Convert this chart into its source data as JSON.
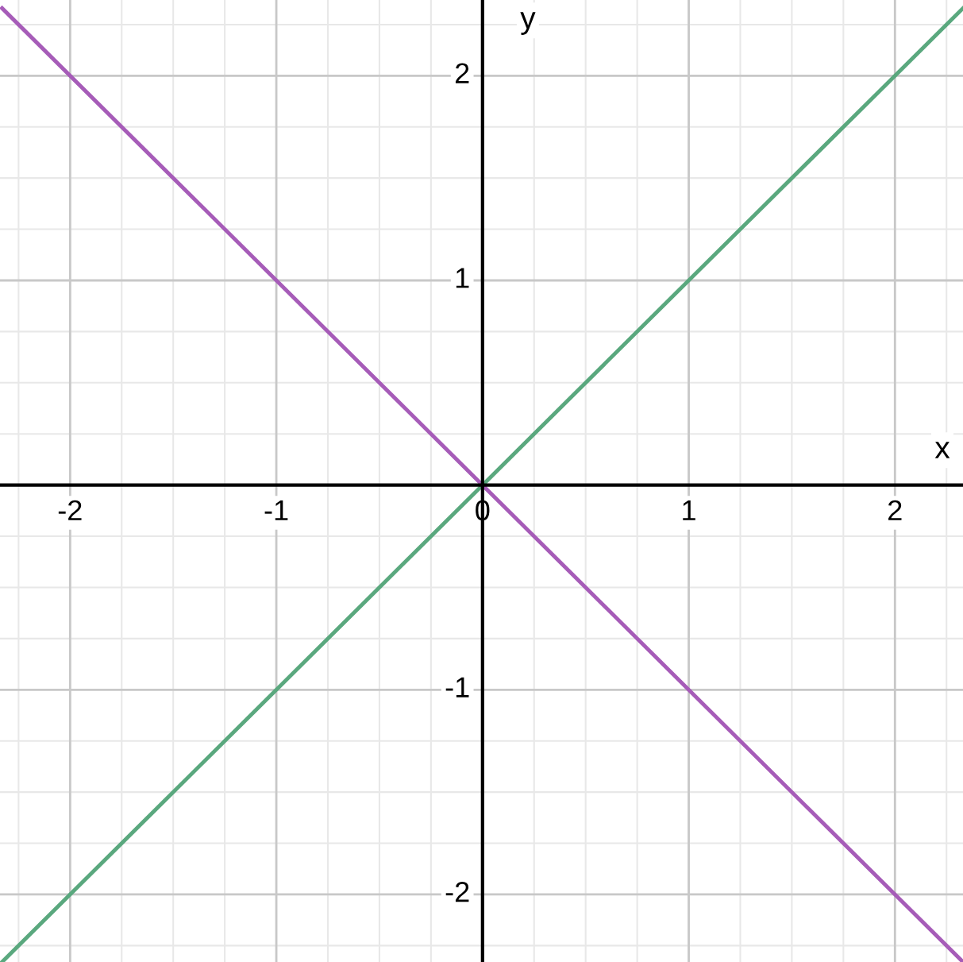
{
  "chart_data": {
    "type": "line",
    "xlabel": "x",
    "ylabel": "y",
    "xlim": [
      -2.34,
      2.33
    ],
    "ylim": [
      -2.33,
      2.37
    ],
    "xticks": [
      -2,
      -1,
      0,
      1,
      2
    ],
    "yticks": [
      -2,
      -1,
      1,
      2
    ],
    "grid": true,
    "marker": "none",
    "line_style": "solid",
    "series": [
      {
        "color": "#5aa87e",
        "x": [
          -2.33,
          0,
          2.33
        ],
        "values": [
          -2.33,
          0,
          2.33
        ]
      },
      {
        "color": "#a65cb8",
        "x": [
          -2.33,
          0,
          2.33
        ],
        "values": [
          2.33,
          0,
          -2.33
        ]
      }
    ]
  }
}
